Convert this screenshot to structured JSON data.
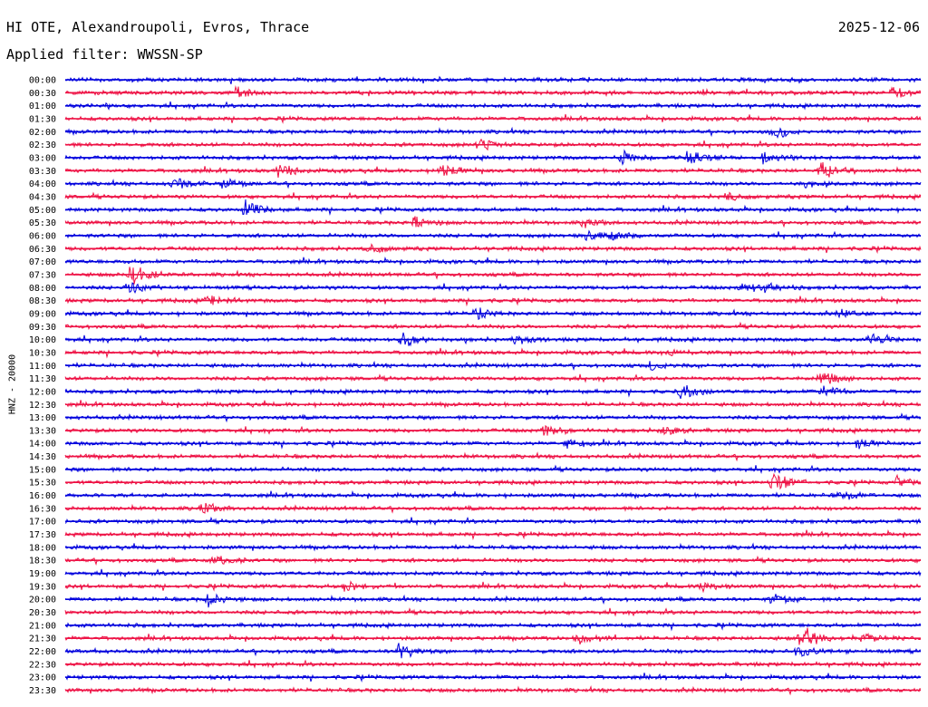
{
  "header": {
    "title": "HI OTE, Alexandroupoli, Evros, Thrace",
    "date": "2025-12-06",
    "filter": "Applied filter: WWSSN-SP"
  },
  "chart_data": {
    "type": "line",
    "title": "HI OTE, Alexandroupoli, Evros, Thrace",
    "ylabel": "HNZ - 20000",
    "colors": {
      "even": "#0000dd",
      "odd": "#ee1144"
    },
    "rows": [
      {
        "label": "00:00",
        "color": "blue"
      },
      {
        "label": "00:30",
        "color": "red"
      },
      {
        "label": "01:00",
        "color": "blue"
      },
      {
        "label": "01:30",
        "color": "red"
      },
      {
        "label": "02:00",
        "color": "blue"
      },
      {
        "label": "02:30",
        "color": "red"
      },
      {
        "label": "03:00",
        "color": "blue"
      },
      {
        "label": "03:30",
        "color": "red"
      },
      {
        "label": "04:00",
        "color": "blue"
      },
      {
        "label": "04:30",
        "color": "red"
      },
      {
        "label": "05:00",
        "color": "blue"
      },
      {
        "label": "05:30",
        "color": "red"
      },
      {
        "label": "06:00",
        "color": "blue"
      },
      {
        "label": "06:30",
        "color": "red"
      },
      {
        "label": "07:00",
        "color": "blue"
      },
      {
        "label": "07:30",
        "color": "red"
      },
      {
        "label": "08:00",
        "color": "blue"
      },
      {
        "label": "08:30",
        "color": "red"
      },
      {
        "label": "09:00",
        "color": "blue"
      },
      {
        "label": "09:30",
        "color": "red"
      },
      {
        "label": "10:00",
        "color": "blue"
      },
      {
        "label": "10:30",
        "color": "red"
      },
      {
        "label": "11:00",
        "color": "blue"
      },
      {
        "label": "11:30",
        "color": "red"
      },
      {
        "label": "12:00",
        "color": "blue"
      },
      {
        "label": "12:30",
        "color": "red"
      },
      {
        "label": "13:00",
        "color": "blue"
      },
      {
        "label": "13:30",
        "color": "red"
      },
      {
        "label": "14:00",
        "color": "blue"
      },
      {
        "label": "14:30",
        "color": "red"
      },
      {
        "label": "15:00",
        "color": "blue"
      },
      {
        "label": "15:30",
        "color": "red"
      },
      {
        "label": "16:00",
        "color": "blue"
      },
      {
        "label": "16:30",
        "color": "red"
      },
      {
        "label": "17:00",
        "color": "blue"
      },
      {
        "label": "17:30",
        "color": "red"
      },
      {
        "label": "18:00",
        "color": "blue"
      },
      {
        "label": "18:30",
        "color": "red"
      },
      {
        "label": "19:00",
        "color": "blue"
      },
      {
        "label": "19:30",
        "color": "red"
      },
      {
        "label": "20:00",
        "color": "blue"
      },
      {
        "label": "20:30",
        "color": "red"
      },
      {
        "label": "21:00",
        "color": "blue"
      },
      {
        "label": "21:30",
        "color": "red"
      },
      {
        "label": "22:00",
        "color": "blue"
      },
      {
        "label": "22:30",
        "color": "red"
      },
      {
        "label": "23:00",
        "color": "blue"
      },
      {
        "label": "23:30",
        "color": "red"
      }
    ],
    "events": [
      {
        "row": "00:30",
        "minute": 6.0,
        "amplitude": 0.5
      },
      {
        "row": "00:30",
        "minute": 29.0,
        "amplitude": 0.6
      },
      {
        "row": "02:00",
        "minute": 24.8,
        "amplitude": 0.5
      },
      {
        "row": "02:30",
        "minute": 14.5,
        "amplitude": 0.5
      },
      {
        "row": "03:00",
        "minute": 19.5,
        "amplitude": 0.6
      },
      {
        "row": "03:00",
        "minute": 21.8,
        "amplitude": 0.7
      },
      {
        "row": "03:00",
        "minute": 24.5,
        "amplitude": 0.6
      },
      {
        "row": "03:30",
        "minute": 7.5,
        "amplitude": 0.8
      },
      {
        "row": "03:30",
        "minute": 13.2,
        "amplitude": 0.6
      },
      {
        "row": "03:30",
        "minute": 26.5,
        "amplitude": 0.7
      },
      {
        "row": "04:00",
        "minute": 3.8,
        "amplitude": 0.5
      },
      {
        "row": "04:00",
        "minute": 5.5,
        "amplitude": 0.4
      },
      {
        "row": "04:00",
        "minute": 26.0,
        "amplitude": 0.4
      },
      {
        "row": "04:30",
        "minute": 23.2,
        "amplitude": 0.4
      },
      {
        "row": "05:00",
        "minute": 6.3,
        "amplitude": 0.8
      },
      {
        "row": "05:30",
        "minute": 12.2,
        "amplitude": 0.6
      },
      {
        "row": "05:30",
        "minute": 18.2,
        "amplitude": 0.4
      },
      {
        "row": "06:00",
        "minute": 18.3,
        "amplitude": 0.5
      },
      {
        "row": "06:00",
        "minute": 19.2,
        "amplitude": 0.5
      },
      {
        "row": "06:30",
        "minute": 10.7,
        "amplitude": 0.5
      },
      {
        "row": "07:30",
        "minute": 2.3,
        "amplitude": 1.0
      },
      {
        "row": "08:00",
        "minute": 2.2,
        "amplitude": 0.6
      },
      {
        "row": "08:00",
        "minute": 23.7,
        "amplitude": 0.4
      },
      {
        "row": "08:00",
        "minute": 24.6,
        "amplitude": 0.4
      },
      {
        "row": "08:30",
        "minute": 5.0,
        "amplitude": 0.5
      },
      {
        "row": "09:00",
        "minute": 14.4,
        "amplitude": 0.5
      },
      {
        "row": "09:00",
        "minute": 27.2,
        "amplitude": 0.4
      },
      {
        "row": "10:00",
        "minute": 11.8,
        "amplitude": 0.7
      },
      {
        "row": "10:00",
        "minute": 15.8,
        "amplitude": 0.4
      },
      {
        "row": "10:00",
        "minute": 28.2,
        "amplitude": 0.4
      },
      {
        "row": "10:30",
        "minute": 21.0,
        "amplitude": 0.4
      },
      {
        "row": "11:00",
        "minute": 20.5,
        "amplitude": 0.4
      },
      {
        "row": "11:30",
        "minute": 26.5,
        "amplitude": 0.7
      },
      {
        "row": "12:00",
        "minute": 21.6,
        "amplitude": 0.7
      },
      {
        "row": "12:00",
        "minute": 26.5,
        "amplitude": 0.6
      },
      {
        "row": "13:30",
        "minute": 16.8,
        "amplitude": 0.5
      },
      {
        "row": "13:30",
        "minute": 21.0,
        "amplitude": 0.4
      },
      {
        "row": "14:00",
        "minute": 17.6,
        "amplitude": 0.4
      },
      {
        "row": "14:00",
        "minute": 27.8,
        "amplitude": 0.4
      },
      {
        "row": "15:30",
        "minute": 24.8,
        "amplitude": 1.0
      },
      {
        "row": "15:30",
        "minute": 29.2,
        "amplitude": 0.6
      },
      {
        "row": "16:00",
        "minute": 27.2,
        "amplitude": 0.5
      },
      {
        "row": "16:30",
        "minute": 4.8,
        "amplitude": 0.6
      },
      {
        "row": "18:30",
        "minute": 5.2,
        "amplitude": 0.4
      },
      {
        "row": "19:30",
        "minute": 9.8,
        "amplitude": 0.5
      },
      {
        "row": "19:30",
        "minute": 22.3,
        "amplitude": 0.5
      },
      {
        "row": "20:00",
        "minute": 5.0,
        "amplitude": 0.7
      },
      {
        "row": "20:00",
        "minute": 24.8,
        "amplitude": 0.6
      },
      {
        "row": "21:30",
        "minute": 18.0,
        "amplitude": 0.7
      },
      {
        "row": "21:30",
        "minute": 25.8,
        "amplitude": 1.2
      },
      {
        "row": "21:30",
        "minute": 28.0,
        "amplitude": 0.5
      },
      {
        "row": "22:00",
        "minute": 11.7,
        "amplitude": 0.8
      },
      {
        "row": "22:00",
        "minute": 25.7,
        "amplitude": 0.6
      }
    ]
  }
}
